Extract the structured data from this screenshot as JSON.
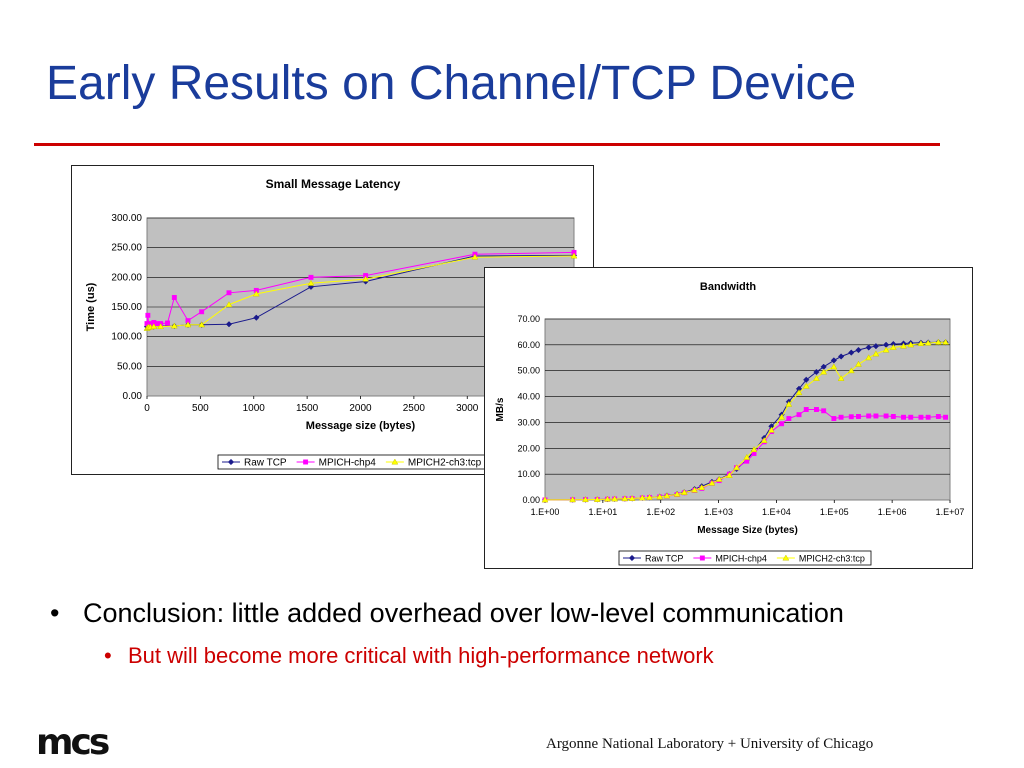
{
  "slide": {
    "title": "Early Results on Channel/TCP Device",
    "bullet_main": "Conclusion: little added overhead over low-level communication",
    "bullet_sub": "But will become more critical with high-performance network",
    "bullet_glyph": "•",
    "logo_text": "mcs",
    "footer": "Argonne National Laboratory + University of Chicago",
    "colors": {
      "title": "#1a3c9b",
      "rule": "#cc0000",
      "sub_bullet": "#cc0000"
    }
  },
  "chart_data": [
    {
      "type": "line",
      "title": "Small Message Latency",
      "xlabel": "Message size (bytes)",
      "ylabel": "Time (us)",
      "xlim": [
        0,
        4000
      ],
      "ylim": [
        0,
        300
      ],
      "x_ticks": [
        "0",
        "500",
        "1000",
        "1500",
        "2000",
        "2500",
        "3000"
      ],
      "y_ticks": [
        "0.00",
        "50.00",
        "100.00",
        "150.00",
        "200.00",
        "250.00",
        "300.00"
      ],
      "grid": true,
      "legend_position": "bottom",
      "series": [
        {
          "name": "Raw TCP",
          "color": "#1a1a8c",
          "marker": "diamond",
          "x": [
            0,
            8,
            16,
            32,
            64,
            128,
            256,
            384,
            512,
            768,
            1024,
            1536,
            2048,
            3072,
            4000
          ],
          "y": [
            117,
            117,
            117,
            117,
            117,
            118,
            118,
            120,
            120,
            121,
            132,
            184,
            193,
            236,
            237
          ]
        },
        {
          "name": "MPICH-chp4",
          "color": "#ff00ff",
          "marker": "square",
          "x": [
            0,
            8,
            16,
            32,
            64,
            96,
            128,
            192,
            256,
            384,
            512,
            768,
            1024,
            1536,
            2048,
            3072,
            4000
          ],
          "y": [
            122,
            136,
            120,
            122,
            124,
            122,
            122,
            123,
            166,
            127,
            142,
            174,
            178,
            200,
            203,
            239,
            242
          ]
        },
        {
          "name": "MPICH2-ch3:tcp",
          "color": "#ffff00",
          "marker": "triangle",
          "x": [
            0,
            8,
            16,
            32,
            64,
            128,
            256,
            384,
            512,
            768,
            1024,
            1536,
            2048,
            3072,
            4000
          ],
          "y": [
            114,
            115,
            116,
            116,
            117,
            117,
            118,
            120,
            120,
            154,
            172,
            190,
            197,
            234,
            236
          ]
        }
      ]
    },
    {
      "type": "line",
      "title": "Bandwidth",
      "xlabel": "Message Size (bytes)",
      "ylabel": "MB/s",
      "xscale": "log",
      "xlim": [
        1,
        10000000
      ],
      "ylim": [
        0,
        70
      ],
      "x_ticks": [
        "1.E+00",
        "1.E+01",
        "1.E+02",
        "1.E+03",
        "1.E+04",
        "1.E+05",
        "1.E+06",
        "1.E+07"
      ],
      "y_ticks": [
        "0.00",
        "10.00",
        "20.00",
        "30.00",
        "40.00",
        "50.00",
        "60.00",
        "70.00"
      ],
      "grid": true,
      "legend_position": "bottom",
      "series": [
        {
          "name": "Raw TCP",
          "color": "#1a1a8c",
          "marker": "diamond",
          "x": [
            1,
            3,
            5,
            8,
            12,
            16,
            24,
            32,
            48,
            64,
            96,
            128,
            192,
            256,
            384,
            512,
            768,
            1024,
            1536,
            2048,
            3072,
            4096,
            6144,
            8192,
            12288,
            16384,
            24576,
            32768,
            49152,
            65536,
            98304,
            131072,
            196608,
            262144,
            393216,
            524288,
            786432,
            1048576,
            1572864,
            2097152,
            3145728,
            4194304,
            6291456,
            8388608
          ],
          "y": [
            0.05,
            0.1,
            0.15,
            0.2,
            0.3,
            0.4,
            0.5,
            0.6,
            0.8,
            1.0,
            1.3,
            1.7,
            2.3,
            3.0,
            4.2,
            5.3,
            7.0,
            8.0,
            10.0,
            12.0,
            15.5,
            19.0,
            24.0,
            28.5,
            33.0,
            38.0,
            43.0,
            46.5,
            49.5,
            51.5,
            54.0,
            55.5,
            57.0,
            58.0,
            59.0,
            59.5,
            60.0,
            60.3,
            60.5,
            60.7,
            60.8,
            60.9,
            61.0,
            61.0
          ]
        },
        {
          "name": "MPICH-chp4",
          "color": "#ff00ff",
          "marker": "square",
          "x": [
            1,
            3,
            5,
            8,
            12,
            16,
            24,
            32,
            48,
            64,
            96,
            128,
            192,
            256,
            384,
            512,
            768,
            1024,
            1536,
            2048,
            3072,
            4096,
            6144,
            8192,
            12288,
            16384,
            24576,
            32768,
            49152,
            65536,
            98304,
            131072,
            196608,
            262144,
            393216,
            524288,
            786432,
            1048576,
            1572864,
            2097152,
            3145728,
            4194304,
            6291456,
            8388608
          ],
          "y": [
            0.05,
            0.1,
            0.15,
            0.2,
            0.3,
            0.4,
            0.5,
            0.6,
            0.8,
            1.0,
            1.2,
            1.5,
            2.1,
            2.8,
            3.7,
            4.5,
            6.5,
            7.5,
            10.0,
            12.5,
            15.0,
            18.0,
            22.5,
            26.5,
            29.5,
            31.5,
            33.0,
            35.0,
            35.0,
            34.5,
            31.5,
            32.0,
            32.2,
            32.3,
            32.5,
            32.5,
            32.5,
            32.3,
            32.0,
            32.0,
            32.0,
            32.0,
            32.3,
            32.0
          ]
        },
        {
          "name": "MPICH2-ch3:tcp",
          "color": "#ffff00",
          "marker": "triangle",
          "x": [
            1,
            3,
            5,
            8,
            12,
            16,
            24,
            32,
            48,
            64,
            96,
            128,
            192,
            256,
            384,
            512,
            768,
            1024,
            1536,
            2048,
            3072,
            4096,
            6144,
            8192,
            12288,
            16384,
            24576,
            32768,
            49152,
            65536,
            98304,
            131072,
            196608,
            262144,
            393216,
            524288,
            786432,
            1048576,
            1572864,
            2097152,
            3145728,
            4194304,
            6291456,
            8388608
          ],
          "y": [
            0.05,
            0.1,
            0.15,
            0.2,
            0.3,
            0.4,
            0.5,
            0.6,
            0.8,
            1.0,
            1.2,
            1.6,
            2.2,
            2.9,
            3.8,
            4.8,
            6.5,
            8.0,
            9.5,
            12.5,
            16.5,
            19.5,
            23.0,
            27.0,
            32.0,
            37.0,
            41.5,
            44.0,
            47.0,
            49.5,
            51.5,
            47.0,
            50.0,
            52.5,
            55.0,
            56.5,
            58.0,
            59.0,
            59.5,
            60.0,
            60.5,
            60.7,
            61.0,
            61.0
          ]
        }
      ]
    }
  ]
}
